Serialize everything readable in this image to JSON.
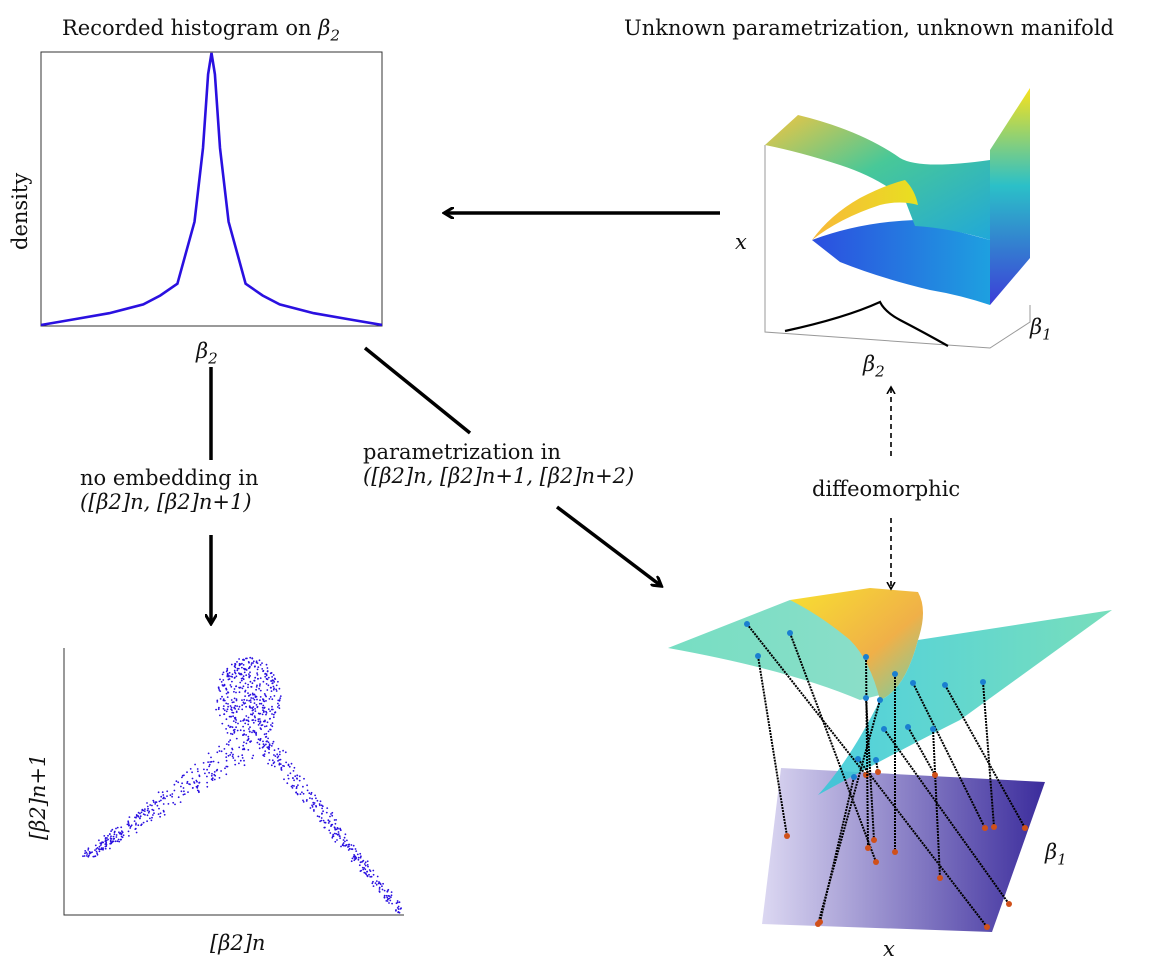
{
  "labels": {
    "hist_title": "Recorded histogram on",
    "hist_title_symbol": "β",
    "hist_title_sub": "2",
    "hist_ylabel": "density",
    "hist_xlabel": "β",
    "hist_xlabel_sub": "2",
    "manifold_title": "Unknown parametrization, unknown manifold",
    "manifold_axis_x": "x",
    "manifold_axis_b1": "β",
    "manifold_axis_b1_sub": "1",
    "manifold_axis_b2": "β",
    "manifold_axis_b2_sub": "2",
    "no_embed_line1": "no embedding in",
    "no_embed_line2": "([β2]n, [β2]n+1)",
    "param_line1": "parametrization in",
    "param_line2": "([β2]n, [β2]n+1, [β2]n+2)",
    "diffeo": "diffeomorphic",
    "scatter_ylabel": "[β2]n+1",
    "scatter_xlabel": "[β2]n",
    "bottom_b1": "β",
    "bottom_b1_sub": "1",
    "bottom_x": "x"
  },
  "colors": {
    "curve": "#2a10e0",
    "scatter": "#2a10e0",
    "axis": "#333333",
    "arrow": "#000000",
    "plane_light": "#d8d4f0",
    "plane_dark": "#3d2fa0",
    "point_top": "#1a7fd0",
    "point_bottom": "#d0501a",
    "surface_yellow": "#f5e020",
    "surface_green": "#3fd0a0",
    "surface_cyan": "#20b8d8",
    "surface_blue": "#3050e0"
  },
  "chart_data": [
    {
      "type": "line",
      "title": "Recorded histogram on β2",
      "xlabel": "β2",
      "ylabel": "density",
      "x": [
        -1.0,
        -0.8,
        -0.6,
        -0.4,
        -0.3,
        -0.2,
        -0.1,
        -0.05,
        -0.02,
        0.0,
        0.02,
        0.05,
        0.1,
        0.2,
        0.3,
        0.4,
        0.6,
        0.8,
        1.0
      ],
      "values": [
        0.0,
        0.02,
        0.04,
        0.07,
        0.1,
        0.14,
        0.35,
        0.6,
        0.85,
        1.0,
        0.85,
        0.6,
        0.35,
        0.14,
        0.1,
        0.07,
        0.04,
        0.02,
        0.0
      ],
      "grid": false
    },
    {
      "type": "scatter",
      "xlabel": "[β2]n",
      "ylabel": "[β2]n+1",
      "grid": false
    }
  ]
}
